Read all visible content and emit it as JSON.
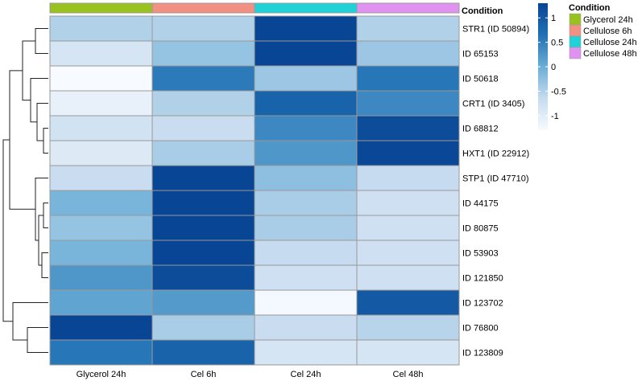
{
  "chart_data": {
    "type": "heatmap",
    "columns": [
      "Glycerol 24h",
      "Cel 6h",
      "Cel 24h",
      "Cel 48h"
    ],
    "rows": [
      "STR1 (ID  50894)",
      "ID  65153",
      "ID  50618",
      "CRT1 (ID  3405)",
      "ID  68812",
      "HXT1 (ID  22912)",
      "STP1 (ID  47710)",
      "ID  44175",
      "ID  80875",
      "ID  53903",
      "ID  121850",
      "ID  123702",
      "ID  76800",
      "ID  123809"
    ],
    "values": [
      [
        -0.5,
        -0.5,
        1.3,
        -0.5
      ],
      [
        -0.85,
        -0.3,
        1.3,
        -0.35
      ],
      [
        -1.3,
        0.55,
        -0.35,
        0.6
      ],
      [
        -1.1,
        -0.5,
        0.85,
        0.4
      ],
      [
        -0.8,
        -0.7,
        0.4,
        1.2
      ],
      [
        -0.95,
        -0.45,
        0.25,
        1.25
      ],
      [
        -0.7,
        1.3,
        -0.25,
        -0.65
      ],
      [
        -0.1,
        1.3,
        -0.45,
        -0.75
      ],
      [
        -0.3,
        1.3,
        -0.45,
        -0.75
      ],
      [
        -0.1,
        1.3,
        -0.65,
        -0.75
      ],
      [
        0.25,
        1.2,
        -0.75,
        -0.75
      ],
      [
        0.1,
        0.2,
        -1.25,
        1.0
      ],
      [
        1.3,
        -0.45,
        -0.7,
        -0.55
      ],
      [
        0.6,
        0.85,
        -0.85,
        -0.85
      ]
    ],
    "color_scale": {
      "min": -1.3,
      "max": 1.3,
      "colors": [
        "#f7fbff",
        "#c6dbef",
        "#6baed6",
        "#2171b5",
        "#084594"
      ],
      "ticks": [
        1,
        0.5,
        0,
        -0.5,
        -1
      ]
    },
    "annotation": {
      "title": "Condition",
      "labels": [
        "Glycerol 24h",
        "Cellulose 6h",
        "Cellulose 24h",
        "Cellulose 48h"
      ],
      "colors": [
        "#99c21e",
        "#f29083",
        "#1ed2d8",
        "#df92f0"
      ]
    },
    "dendrogram": "rows clustered (hierarchical), drawn on left",
    "grid_color": "#999999"
  }
}
